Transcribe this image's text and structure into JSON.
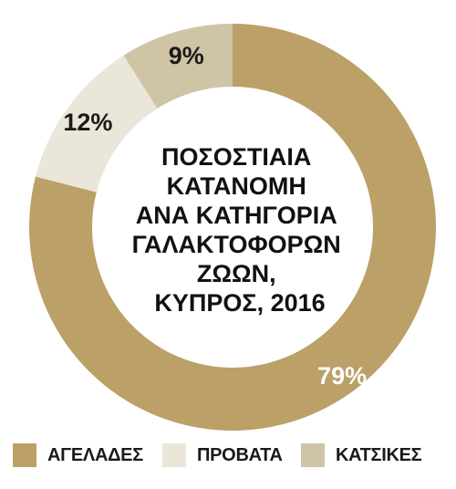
{
  "chart_data": {
    "type": "pie",
    "title_lines": [
      "ΠΟΣΟΣΤΙΑΙΑ",
      "ΚΑΤΑΝΟΜΗ",
      "ΑΝΑ ΚΑΤΗΓΟΡΙΑ",
      "ΓΑΛΑΚΤΟΦΟΡΩΝ",
      "ΖΩΩΝ,",
      "ΚΥΠΡΟΣ, 2016"
    ],
    "slices": [
      {
        "label": "ΑΓΕΛΑΔΕΣ",
        "value": 79,
        "value_label": "79%",
        "color": "#bba068"
      },
      {
        "label": "ΠΡΟΒΑΤΑ",
        "value": 12,
        "value_label": "12%",
        "color": "#ebe6da"
      },
      {
        "label": "ΚΑΤΣΙΚΕΣ",
        "value": 9,
        "value_label": "9%",
        "color": "#cfc4a6"
      }
    ],
    "legend_position": "bottom",
    "donut": true
  }
}
